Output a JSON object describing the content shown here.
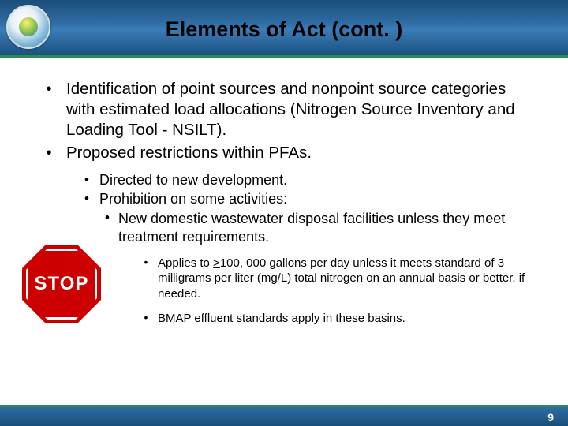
{
  "colors": {
    "header_gradient_top": "#1a4d7a",
    "header_gradient_mid": "#3a7db8",
    "accent_green": "#2a8a5a",
    "stop_red": "#cc0000",
    "text": "#000000",
    "footer_text": "#ffffff"
  },
  "title": "Elements of Act (cont. )",
  "bullets": {
    "level1": [
      "Identification of point sources and nonpoint source categories with estimated load allocations (Nitrogen Source Inventory and Loading Tool - NSILT).",
      "Proposed restrictions within PFAs."
    ],
    "level2": [
      "Directed to new development.",
      "Prohibition on some activities:"
    ],
    "level3": [
      "New domestic wastewater disposal facilities unless they meet treatment requirements."
    ],
    "level4_prefix": "Applies to ",
    "level4_underlined": ">",
    "level4_rest": "100, 000 gallons per day unless it meets standard of 3 milligrams per liter (mg/L) total nitrogen on an annual basis or better, if needed.",
    "level4_b": "BMAP effluent standards apply in these basins."
  },
  "stop_label": "STOP",
  "page_number": "9"
}
